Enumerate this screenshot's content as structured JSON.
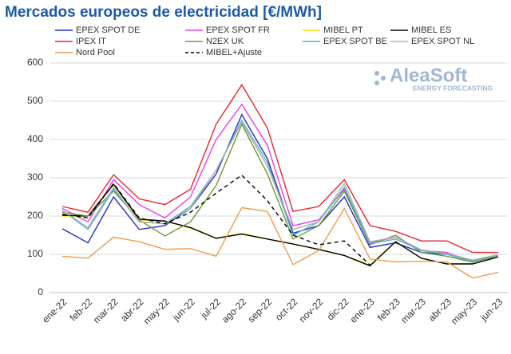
{
  "chart_data": {
    "type": "line",
    "title": "Mercados europeos de electricidad [€/MWh]",
    "watermark": "AleaSoft",
    "watermark_subtitle": "ENERGY FORECASTING",
    "categories": [
      "ene-22",
      "feb-22",
      "mar-22",
      "abr-22",
      "may-22",
      "jun-22",
      "jul-22",
      "ago-22",
      "sep-22",
      "oct-22",
      "nov-22",
      "dic-22",
      "ene-23",
      "feb-23",
      "mar-23",
      "abr-23",
      "may-23",
      "jun-23"
    ],
    "series": [
      {
        "name": "EPEX SPOT DE",
        "color": "#1f2fbf",
        "values": [
          167,
          130,
          250,
          165,
          175,
          220,
          310,
          465,
          350,
          155,
          175,
          250,
          118,
          130,
          105,
          100,
          82,
          95
        ]
      },
      {
        "name": "EPEX SPOT FR",
        "color": "#e83ee8",
        "values": [
          220,
          185,
          295,
          230,
          195,
          250,
          400,
          492,
          385,
          175,
          190,
          270,
          130,
          145,
          110,
          105,
          80,
          97
        ]
      },
      {
        "name": "MIBEL PT",
        "color": "#f5e400",
        "values": [
          200,
          200,
          283,
          190,
          187,
          168,
          142,
          155,
          140,
          127,
          112,
          97,
          72,
          133,
          90,
          75,
          75,
          93
        ]
      },
      {
        "name": "MIBEL ES",
        "color": "#000000",
        "values": [
          202,
          200,
          283,
          192,
          187,
          170,
          142,
          153,
          140,
          127,
          113,
          97,
          70,
          133,
          90,
          75,
          75,
          93
        ]
      },
      {
        "name": "IPEX IT",
        "color": "#e3262a",
        "values": [
          225,
          210,
          308,
          245,
          230,
          270,
          440,
          543,
          430,
          212,
          225,
          295,
          175,
          160,
          135,
          135,
          105,
          105
        ]
      },
      {
        "name": "N2EX UK",
        "color": "#6a9a3a",
        "values": [
          210,
          200,
          265,
          190,
          148,
          185,
          280,
          440,
          310,
          140,
          175,
          265,
          125,
          150,
          105,
          95,
          80,
          95
        ]
      },
      {
        "name": "EPEX SPOT BE",
        "color": "#4fb3c6",
        "values": [
          215,
          165,
          270,
          185,
          180,
          225,
          320,
          450,
          340,
          150,
          185,
          275,
          128,
          140,
          110,
          100,
          82,
          98
        ]
      },
      {
        "name": "EPEX SPOT NL",
        "color": "#b0b0b0",
        "values": [
          215,
          170,
          275,
          185,
          180,
          220,
          320,
          445,
          330,
          165,
          185,
          285,
          133,
          145,
          112,
          102,
          85,
          99
        ]
      },
      {
        "name": "Nord Pool",
        "color": "#ee9a4c",
        "values": [
          95,
          90,
          145,
          133,
          113,
          115,
          95,
          222,
          212,
          73,
          110,
          220,
          88,
          80,
          82,
          80,
          38,
          53
        ]
      },
      {
        "name": "MIBEL+Ajuste",
        "color": "#000000",
        "dash": true,
        "values": [
          205,
          195,
          285,
          195,
          180,
          210,
          260,
          307,
          240,
          150,
          125,
          135,
          72,
          null,
          null,
          null,
          null,
          null
        ]
      }
    ],
    "ylim": [
      0,
      600
    ],
    "yticks": [
      0,
      100,
      200,
      300,
      400,
      500,
      600
    ],
    "grid": true
  }
}
